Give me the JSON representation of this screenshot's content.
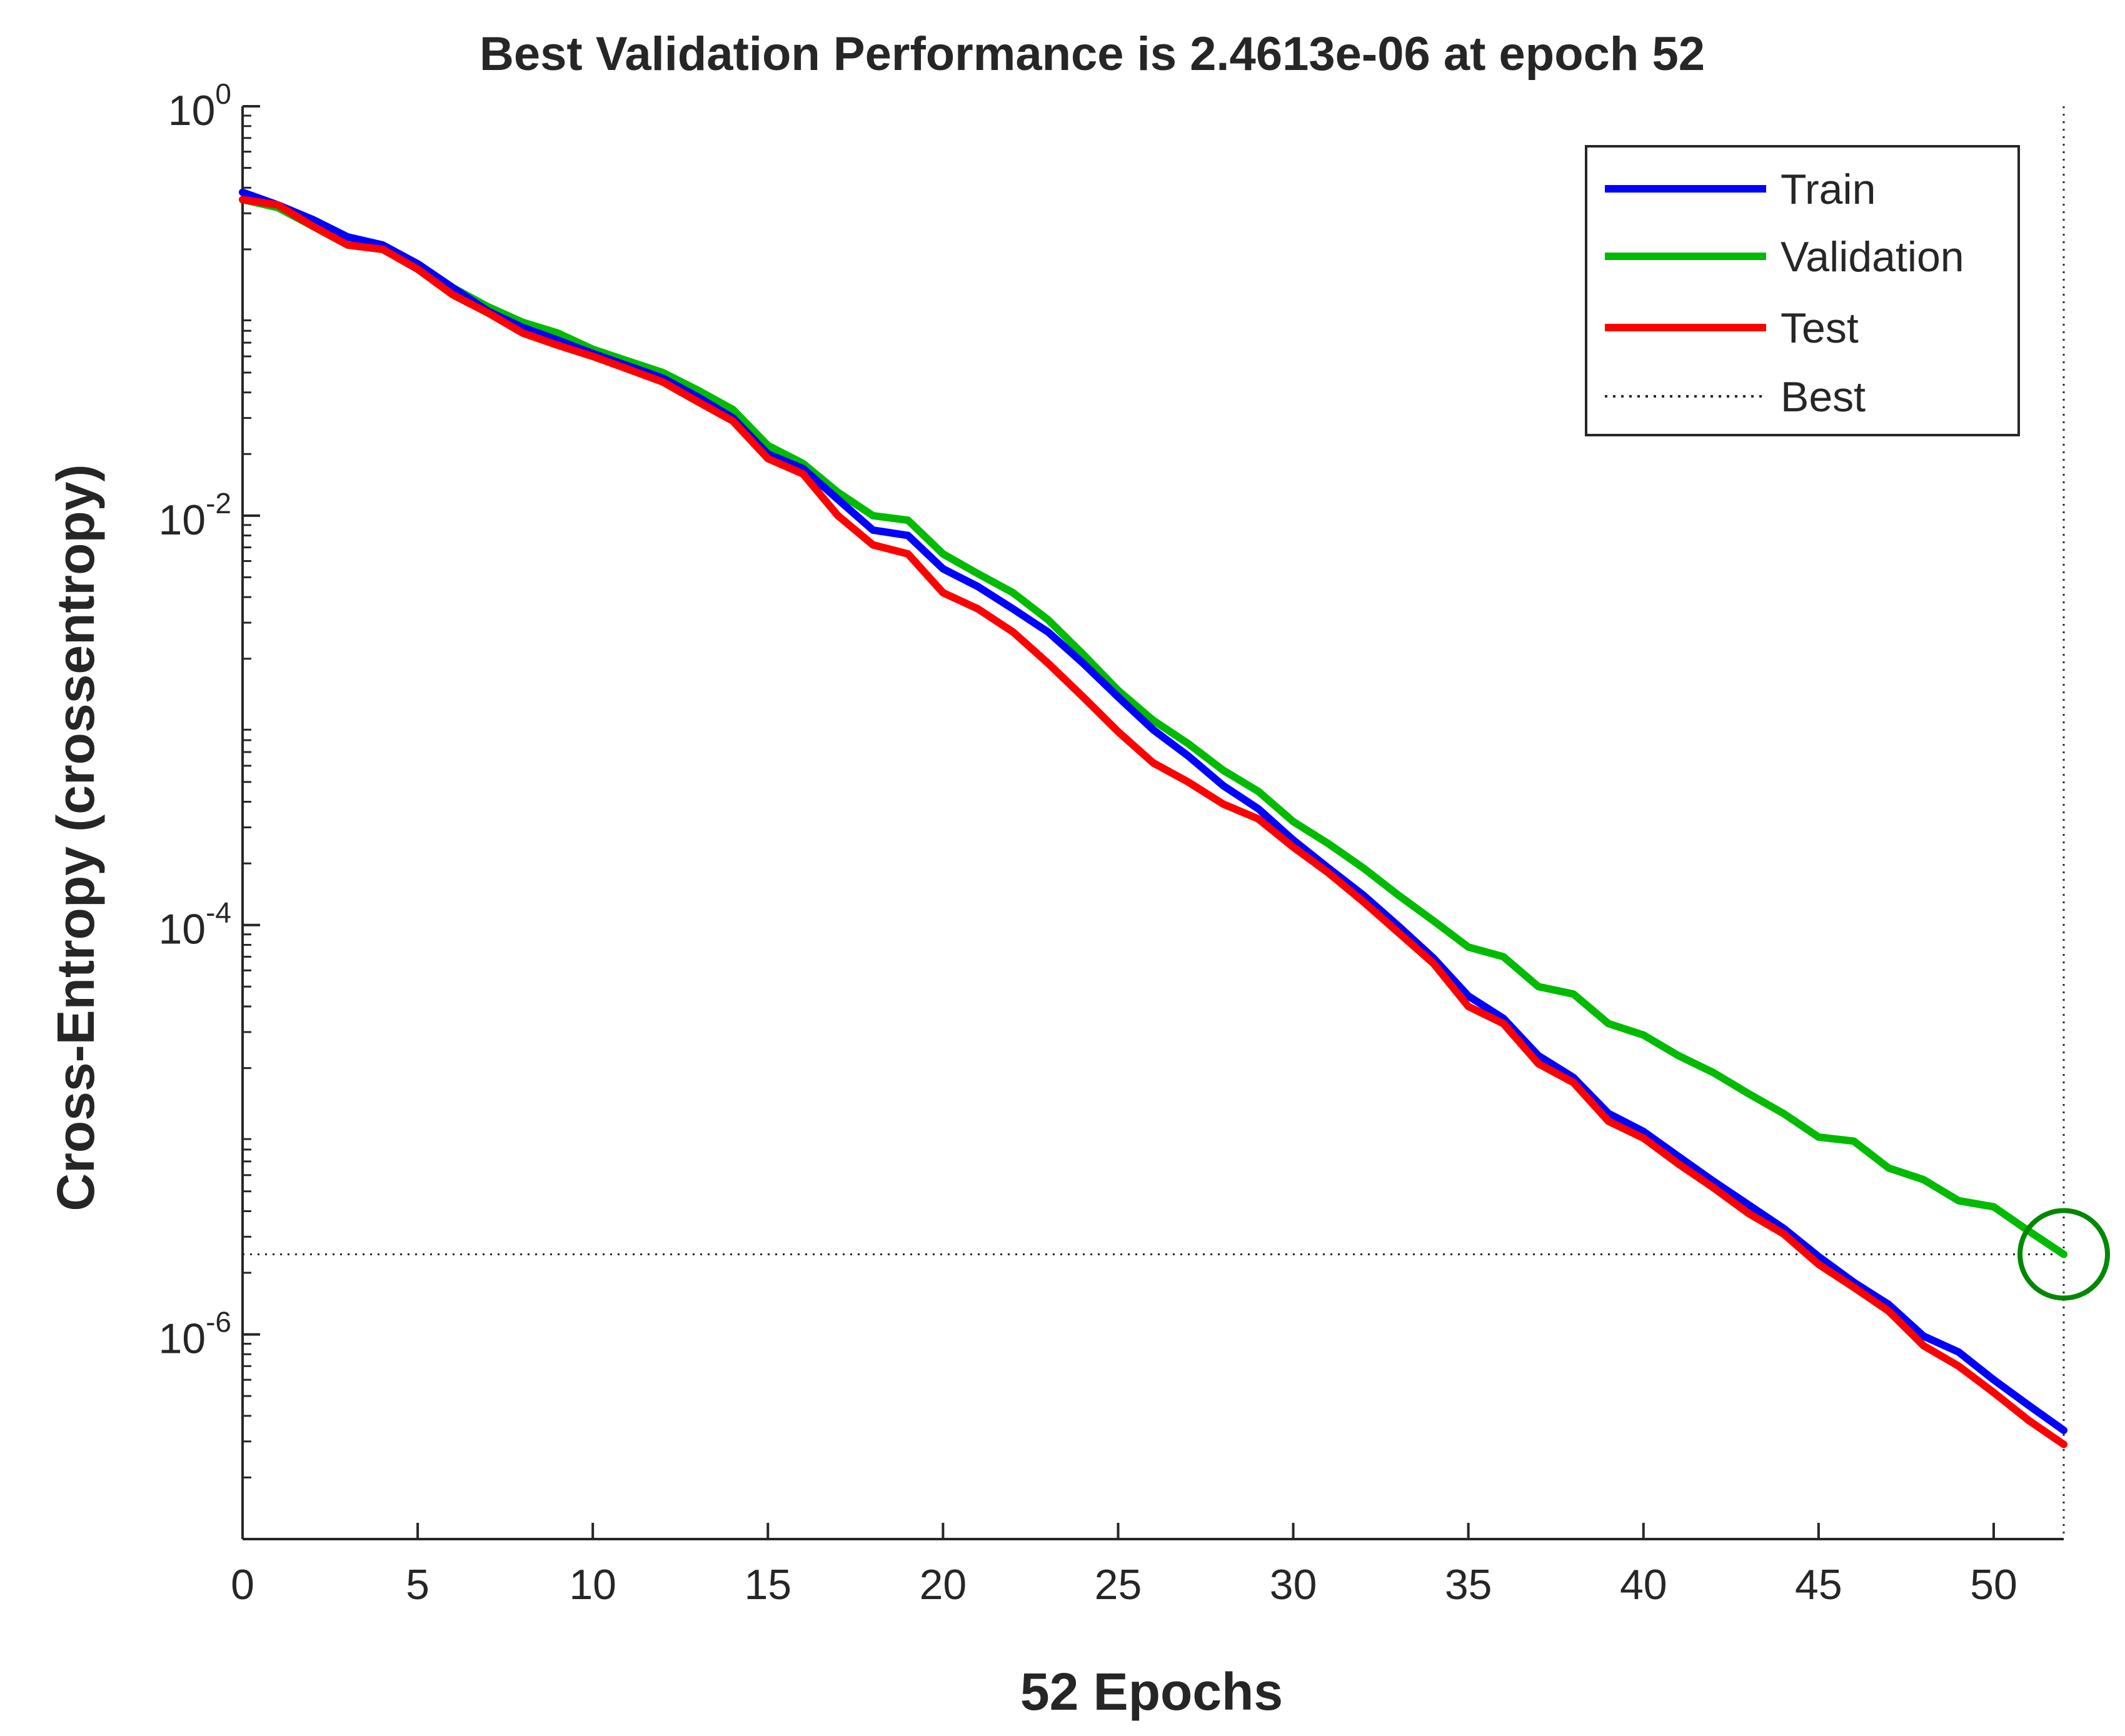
{
  "chart_data": {
    "type": "line",
    "title": "Best Validation Performance is 2.4613e-06 at epoch 52",
    "xlabel": "52 Epochs",
    "ylabel": "Cross-Entropy  (crossentropy)",
    "yscale": "log",
    "xlim": [
      0,
      52
    ],
    "ylim": [
      1e-07,
      1
    ],
    "xticks": [
      0,
      5,
      10,
      15,
      20,
      25,
      30,
      35,
      40,
      45,
      50
    ],
    "xtick_labels": [
      "0",
      "5",
      "10",
      "15",
      "20",
      "25",
      "30",
      "35",
      "40",
      "45",
      "50"
    ],
    "yticks": [
      {
        "value": 1,
        "base": "10",
        "exponent": "0"
      },
      {
        "value": 0.01,
        "base": "10",
        "exponent": "-2"
      },
      {
        "value": 0.0001,
        "base": "10",
        "exponent": "-4"
      },
      {
        "value": 1e-06,
        "base": "10",
        "exponent": "-6"
      }
    ],
    "legend_position": "top-right",
    "best": {
      "epoch": 52,
      "value": 2.4613e-06,
      "label": "Best"
    },
    "series": [
      {
        "name": "Train",
        "color": "#0000ff",
        "x": [
          0,
          1,
          2,
          3,
          4,
          5,
          6,
          7,
          8,
          9,
          10,
          11,
          12,
          13,
          14,
          15,
          16,
          17,
          18,
          19,
          20,
          21,
          22,
          23,
          24,
          25,
          26,
          27,
          28,
          29,
          30,
          31,
          32,
          33,
          34,
          35,
          36,
          37,
          38,
          39,
          40,
          41,
          42,
          43,
          44,
          45,
          46,
          47,
          48,
          49,
          50,
          51,
          52
        ],
        "values": [
          0.38,
          0.33,
          0.28,
          0.23,
          0.21,
          0.17,
          0.13,
          0.1,
          0.083,
          0.072,
          0.062,
          0.054,
          0.047,
          0.038,
          0.03,
          0.02,
          0.017,
          0.012,
          0.0085,
          0.008,
          0.0055,
          0.0045,
          0.0035,
          0.0027,
          0.0019,
          0.0013,
          0.0009,
          0.00067,
          0.00048,
          0.00037,
          0.00026,
          0.00019,
          0.00014,
          9.9e-05,
          6.9e-05,
          4.5e-05,
          3.5e-05,
          2.3e-05,
          1.8e-05,
          1.2e-05,
          9.8e-06,
          7.4e-06,
          5.6e-06,
          4.3e-06,
          3.3e-06,
          2.4e-06,
          1.8e-06,
          1.4e-06,
          9.8e-07,
          8.2e-07,
          6e-07,
          4.5e-07,
          3.4e-07
        ]
      },
      {
        "name": "Validation",
        "color": "#00bb00",
        "x": [
          0,
          1,
          2,
          3,
          4,
          5,
          6,
          7,
          8,
          9,
          10,
          11,
          12,
          13,
          14,
          15,
          16,
          17,
          18,
          19,
          20,
          21,
          22,
          23,
          24,
          25,
          26,
          27,
          28,
          29,
          30,
          31,
          32,
          33,
          34,
          35,
          36,
          37,
          38,
          39,
          40,
          41,
          42,
          43,
          44,
          45,
          46,
          47,
          48,
          49,
          50,
          51,
          52
        ],
        "values": [
          0.35,
          0.32,
          0.26,
          0.21,
          0.2,
          0.17,
          0.13,
          0.105,
          0.088,
          0.078,
          0.065,
          0.057,
          0.05,
          0.041,
          0.033,
          0.022,
          0.018,
          0.013,
          0.01,
          0.0095,
          0.0065,
          0.0052,
          0.0042,
          0.0031,
          0.0021,
          0.0014,
          0.001,
          0.00077,
          0.00057,
          0.00045,
          0.00032,
          0.00025,
          0.00019,
          0.00014,
          0.000105,
          7.8e-05,
          7e-05,
          5e-05,
          4.6e-05,
          3.3e-05,
          2.9e-05,
          2.3e-05,
          1.9e-05,
          1.5e-05,
          1.2e-05,
          9.2e-06,
          8.8e-06,
          6.5e-06,
          5.7e-06,
          4.5e-06,
          4.2e-06,
          3.2e-06,
          2.4613e-06
        ]
      },
      {
        "name": "Test",
        "color": "#ff0000",
        "x": [
          0,
          1,
          2,
          3,
          4,
          5,
          6,
          7,
          8,
          9,
          10,
          11,
          12,
          13,
          14,
          15,
          16,
          17,
          18,
          19,
          20,
          21,
          22,
          23,
          24,
          25,
          26,
          27,
          28,
          29,
          30,
          31,
          32,
          33,
          34,
          35,
          36,
          37,
          38,
          39,
          40,
          41,
          42,
          43,
          44,
          45,
          46,
          47,
          48,
          49,
          50,
          51,
          52
        ],
        "values": [
          0.35,
          0.33,
          0.26,
          0.21,
          0.2,
          0.16,
          0.12,
          0.098,
          0.078,
          0.068,
          0.06,
          0.052,
          0.045,
          0.036,
          0.029,
          0.019,
          0.016,
          0.01,
          0.0072,
          0.0065,
          0.0042,
          0.0035,
          0.0027,
          0.0019,
          0.0013,
          0.00088,
          0.00062,
          0.0005,
          0.00039,
          0.00033,
          0.00024,
          0.00018,
          0.00013,
          9.2e-05,
          6.5e-05,
          4e-05,
          3.3e-05,
          2.1e-05,
          1.7e-05,
          1.1e-05,
          9.1e-06,
          6.8e-06,
          5.2e-06,
          3.9e-06,
          3.1e-06,
          2.2e-06,
          1.7e-06,
          1.3e-06,
          8.8e-07,
          7e-07,
          5.2e-07,
          3.8e-07,
          2.9e-07
        ]
      }
    ]
  }
}
